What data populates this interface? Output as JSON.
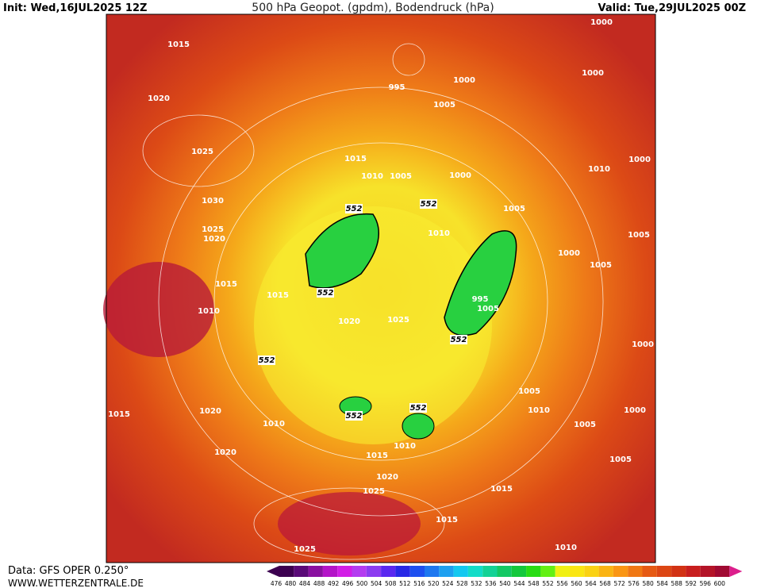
{
  "header": {
    "init": "Init: Wed,16JUL2025 12Z",
    "title": "500 hPa Geopot. (gpdm), Bodendruck (hPa)",
    "valid": "Valid: Tue,29JUL2025 00Z"
  },
  "footer": {
    "data": "Data: GFS OPER 0.250°",
    "site": "WWW.WETTERZENTRALE.DE"
  },
  "isobar_labels": [
    1015,
    1020,
    1025,
    1030,
    1025,
    1020,
    1015,
    1010,
    1015,
    1015,
    1010,
    1005,
    1000,
    1005,
    1010,
    995,
    1000,
    1005,
    1000,
    1000,
    1010,
    1000,
    1005,
    1000,
    1005,
    1000,
    1005,
    1010,
    1000,
    1005,
    1005,
    1015,
    1020,
    1010,
    1020,
    1015,
    1010,
    1020,
    1025,
    1015,
    1015,
    1010,
    1025,
    995,
    1005,
    1020,
    1025
  ],
  "height_labels": [
    552,
    552,
    552,
    552,
    552,
    552,
    552
  ],
  "color_scale": {
    "values": [
      476,
      480,
      484,
      488,
      492,
      496,
      500,
      504,
      508,
      512,
      516,
      520,
      524,
      528,
      532,
      536,
      540,
      544,
      548,
      552,
      556,
      560,
      564,
      568,
      572,
      576,
      580,
      584,
      588,
      592,
      596,
      600
    ],
    "colors": [
      "#3c0050",
      "#5a0a78",
      "#8a10a0",
      "#b414c8",
      "#d21ee6",
      "#b43cf0",
      "#8c3cf0",
      "#5a28f0",
      "#2828e6",
      "#1e50f0",
      "#1e78f0",
      "#1ea0f0",
      "#14c8f0",
      "#14dcc8",
      "#14d296",
      "#14c864",
      "#14c83c",
      "#28dc14",
      "#64f014",
      "#f0f014",
      "#fae614",
      "#fad214",
      "#fab414",
      "#fa9614",
      "#f07814",
      "#e65a14",
      "#dc4614",
      "#d23214",
      "#c81e1e",
      "#b41428",
      "#a00a32",
      "#dc1e8c"
    ]
  }
}
